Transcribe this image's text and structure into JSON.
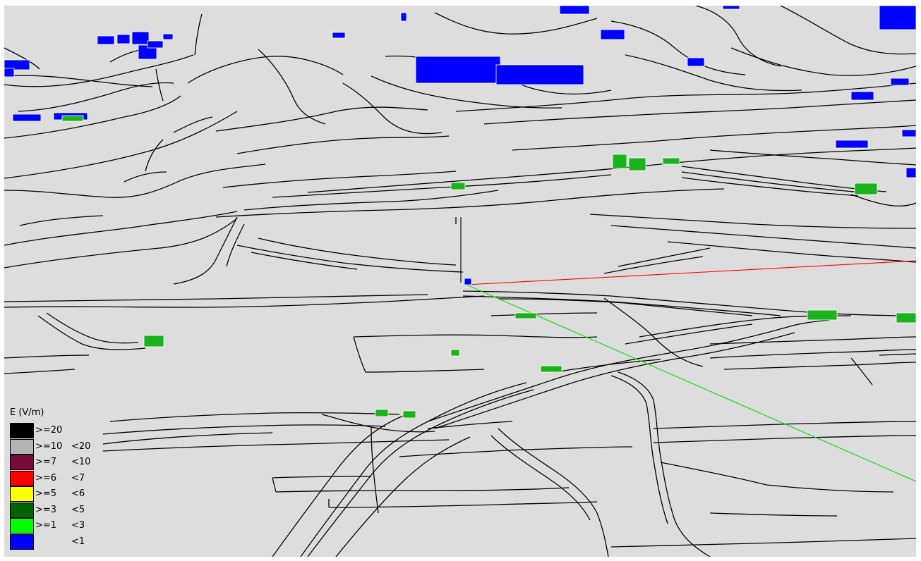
{
  "legend": {
    "title": "E (V/m)",
    "items": [
      {
        "min": ">=20",
        "max": "",
        "color": "#000000"
      },
      {
        "min": ">=10",
        "max": "<20",
        "color": "#b3b3b3"
      },
      {
        "min": ">=7",
        "max": "<10",
        "color": "#7a0a3a"
      },
      {
        "min": ">=6",
        "max": "<7",
        "color": "#ff0000"
      },
      {
        "min": ">=5",
        "max": "<6",
        "color": "#ffff00"
      },
      {
        "min": ">=3",
        "max": "<5",
        "color": "#006400"
      },
      {
        "min": ">=1",
        "max": "<3",
        "color": "#00ff00"
      },
      {
        "min": "",
        "max": "<1",
        "color": "#0000ff"
      }
    ]
  },
  "colors": {
    "background": "#dddddd",
    "contour_lines": "#000000",
    "axis_x": "#ff0000",
    "axis_y": "#00ff00",
    "axis_z": "#000000",
    "building_low": "#0000ff",
    "building_mid": "#1bb31b"
  }
}
